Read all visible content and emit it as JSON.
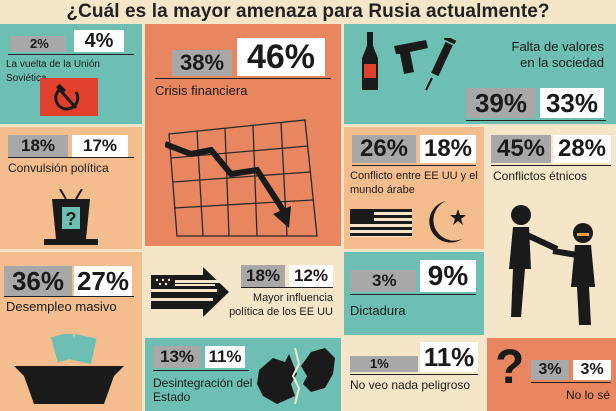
{
  "title": "¿Cuál es la mayor amenaza para Rusia actualmente?",
  "panels": {
    "union": {
      "pct_gray": "2%",
      "pct_white": "4%",
      "label": "La vuelta de la Unión Soviética",
      "icon": "hammer-sickle-icon"
    },
    "crisis": {
      "pct_gray": "38%",
      "pct_white": "46%",
      "label": "Crisis financiera",
      "icon": "falling-chart-icon"
    },
    "valores": {
      "label_line1": "Falta de valores",
      "label_line2": "en la sociedad",
      "pct_gray": "39%",
      "pct_white": "33%",
      "icons": [
        "bottle-icon",
        "pistol-icon",
        "syringe-icon"
      ]
    },
    "convulsion": {
      "pct_gray": "18%",
      "pct_white": "17%",
      "label": "Convulsión política",
      "icon": "podium-question-icon"
    },
    "eeuu_arabe": {
      "pct_gray": "26%",
      "pct_white": "18%",
      "label_line1": "Conflicto entre EE UU y el",
      "label_line2": "mundo árabe",
      "icons": [
        "us-flag-icon",
        "crescent-star-icon"
      ]
    },
    "etnicos": {
      "pct_gray": "45%",
      "pct_white": "28%",
      "label": "Conflictos étnicos",
      "icon": "fighting-figures-icon"
    },
    "desempleo": {
      "pct_gray": "36%",
      "pct_white": "27%",
      "label": "Desempleo masivo",
      "icon": "empty-bowl-icon"
    },
    "influencia": {
      "pct_gray": "18%",
      "pct_white": "12%",
      "label_line1": "Mayor influencia",
      "label_line2": "política de los EE UU",
      "icon": "us-flag-arrow-icon"
    },
    "dictadura": {
      "pct_gray": "3%",
      "pct_white": "9%",
      "label": "Dictadura"
    },
    "desintegracion": {
      "pct_gray": "13%",
      "pct_white": "11%",
      "label_line1": "Desintegración del",
      "label_line2": "Estado",
      "icon": "broken-map-icon"
    },
    "nada": {
      "pct_gray": "1%",
      "pct_white": "11%",
      "label": "No veo nada peligroso"
    },
    "nolose": {
      "pct_gray": "3%",
      "pct_white": "3%",
      "label": "No lo sé",
      "icon": "question-mark-icon"
    }
  },
  "colors": {
    "teal": "#6cbfb2",
    "orange": "#e8865f",
    "peach": "#f4bd8d",
    "cream": "#f6e6c9",
    "red": "#e0402c",
    "gray": "#a8a8a8"
  }
}
